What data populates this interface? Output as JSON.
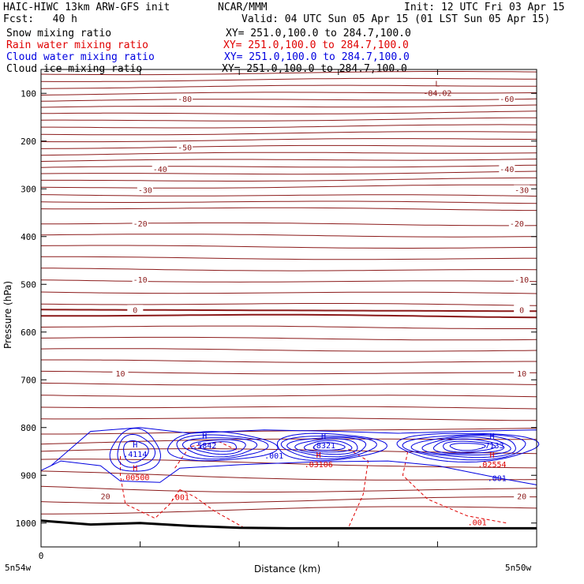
{
  "header": {
    "model": "HAIC-HIWC 13km ARW-GFS init",
    "center": "NCAR/MMM",
    "init": "Init: 12 UTC Fri 03 Apr 15",
    "fcst": "Fcst:   40 h",
    "valid": "Valid: 04 UTC Sun 05 Apr 15 (01 LST Sun 05 Apr 15)"
  },
  "legend": [
    {
      "label": "Snow mixing ratio",
      "xy": "XY= 251.0,100.0 to 284.7,100.0",
      "color": "#000000"
    },
    {
      "label": "Rain water mixing ratio",
      "xy": "XY= 251.0,100.0 to 284.7,100.0",
      "color": "#e00000"
    },
    {
      "label": "Cloud water mixing ratio",
      "xy": "XY= 251.0,100.0 to 284.7,100.0",
      "color": "#0000e0"
    },
    {
      "label": "Cloud ice mixing ratio",
      "xy": "XY= 251.0,100.0 to 284.7,100.0",
      "color": "#000000"
    }
  ],
  "colors": {
    "temperature": "#8b1a1a",
    "rain": "#e00000",
    "cloud": "#0000e0",
    "terrain": "#000000"
  },
  "chart_data": {
    "type": "contour",
    "xlabel": "Distance (km)",
    "ylabel": "Pressure (hPa)",
    "y_ticks": [
      100,
      200,
      300,
      400,
      500,
      600,
      700,
      800,
      900,
      1000
    ],
    "ylim": [
      1050,
      50
    ],
    "x_ticks": [
      "0",
      "",
      "",
      "",
      "",
      ""
    ],
    "x_corner_labels": [
      "5n54w",
      "5n50w"
    ],
    "temperature_labels": [
      {
        "text": "-80",
        "x": 0.29,
        "p": 111
      },
      {
        "text": "-60",
        "x": 0.94,
        "p": 111
      },
      {
        "text": "-50",
        "x": 0.29,
        "p": 213
      },
      {
        "text": "-40",
        "x": 0.24,
        "p": 258
      },
      {
        "text": "-40",
        "x": 0.94,
        "p": 258
      },
      {
        "text": "-30",
        "x": 0.21,
        "p": 302
      },
      {
        "text": "-30",
        "x": 0.97,
        "p": 302
      },
      {
        "text": "-20",
        "x": 0.2,
        "p": 372
      },
      {
        "text": "-20",
        "x": 0.96,
        "p": 372
      },
      {
        "text": "-10",
        "x": 0.2,
        "p": 490
      },
      {
        "text": "-10",
        "x": 0.97,
        "p": 490
      },
      {
        "text": "0",
        "x": 0.19,
        "p": 553
      },
      {
        "text": "0",
        "x": 0.97,
        "p": 553
      },
      {
        "text": "10",
        "x": 0.16,
        "p": 686
      },
      {
        "text": "10",
        "x": 0.97,
        "p": 686
      },
      {
        "text": "20",
        "x": 0.13,
        "p": 943
      },
      {
        "text": "20",
        "x": 0.97,
        "p": 943
      }
    ],
    "extrema": [
      {
        "kind": "L",
        "value": "-84.02",
        "x": 0.8,
        "p": 92,
        "color": "#8b1a1a"
      },
      {
        "kind": "H",
        "value": ".4114",
        "x": 0.19,
        "p": 848,
        "color": "#0000e0"
      },
      {
        "kind": "H",
        "value": ".5842",
        "x": 0.33,
        "p": 830,
        "color": "#0000e0"
      },
      {
        "kind": "H",
        "value": ".8321",
        "x": 0.57,
        "p": 830,
        "color": "#0000e0"
      },
      {
        "kind": "H",
        "value": ".7133",
        "x": 0.91,
        "p": 830,
        "color": "#0000e0"
      },
      {
        "kind": "H",
        "value": ".00500",
        "x": 0.19,
        "p": 897,
        "color": "#e00000"
      },
      {
        "kind": "H",
        "value": ".03106",
        "x": 0.56,
        "p": 870,
        "color": "#e00000"
      },
      {
        "kind": "H",
        "value": ".02554",
        "x": 0.91,
        "p": 870,
        "color": "#e00000"
      }
    ],
    "contour_labels": [
      {
        "text": ".001",
        "x": 0.47,
        "p": 858,
        "color": "#0000e0"
      },
      {
        "text": ".001",
        "x": 0.92,
        "p": 905,
        "color": "#0000e0"
      },
      {
        "text": ".001",
        "x": 0.28,
        "p": 945,
        "color": "#e00000"
      },
      {
        "text": ".001",
        "x": 0.88,
        "p": 998,
        "color": "#e00000"
      }
    ]
  }
}
